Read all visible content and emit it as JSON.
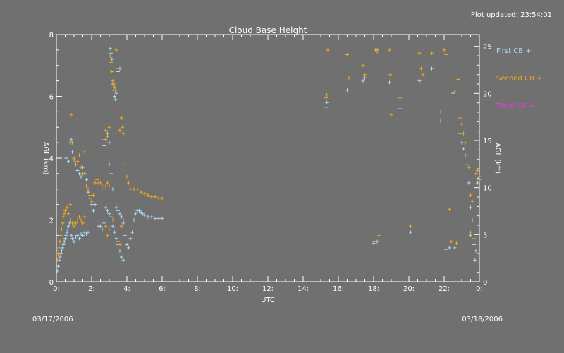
{
  "chart_data": {
    "type": "scatter",
    "title": "Cloud Base Height",
    "updated": "Plot updated: 23:54:01",
    "xlabel": "UTC",
    "ylabel_left": "AGL (km)",
    "ylabel_right": "AGL (kft)",
    "date_left": "03/17/2006",
    "date_right": "03/18/2006",
    "xlim": [
      0,
      24
    ],
    "ylim": [
      0,
      8
    ],
    "ylim_right": [
      0,
      26.25
    ],
    "x_ticks": [
      "0:",
      "2:",
      "4:",
      "6:",
      "8:",
      "10:",
      "12:",
      "14:",
      "16:",
      "18:",
      "20:",
      "22:",
      "0:"
    ],
    "y_ticks_left": [
      "0",
      "2",
      "4",
      "6",
      "8"
    ],
    "y_ticks_right": [
      "0",
      "5",
      "10",
      "15",
      "20",
      "25"
    ],
    "grid": false,
    "legend_placement": "right",
    "colors": {
      "first": "#a8d8f0",
      "second": "#f0a818",
      "third": "#e040e0",
      "axis": "#ffffff",
      "background": "#707070"
    },
    "series": [
      {
        "name": "First CB",
        "marker": "+",
        "points": [
          [
            0.05,
            0.35
          ],
          [
            0.1,
            0.5
          ],
          [
            0.15,
            0.7
          ],
          [
            0.2,
            0.8
          ],
          [
            0.25,
            0.9
          ],
          [
            0.3,
            1.0
          ],
          [
            0.35,
            1.1
          ],
          [
            0.4,
            1.2
          ],
          [
            0.45,
            1.3
          ],
          [
            0.5,
            1.4
          ],
          [
            0.55,
            1.5
          ],
          [
            0.6,
            1.6
          ],
          [
            0.65,
            1.7
          ],
          [
            0.7,
            1.8
          ],
          [
            0.75,
            1.9
          ],
          [
            0.8,
            2.0
          ],
          [
            0.85,
            1.5
          ],
          [
            0.9,
            1.4
          ],
          [
            1.0,
            1.3
          ],
          [
            1.1,
            1.45
          ],
          [
            1.2,
            1.5
          ],
          [
            1.3,
            1.4
          ],
          [
            1.4,
            1.55
          ],
          [
            1.5,
            1.5
          ],
          [
            1.6,
            1.6
          ],
          [
            1.7,
            1.55
          ],
          [
            1.8,
            1.6
          ],
          [
            0.55,
            4.0
          ],
          [
            0.7,
            3.9
          ],
          [
            0.8,
            4.5
          ],
          [
            0.85,
            4.6
          ],
          [
            0.9,
            4.2
          ],
          [
            1.0,
            3.95
          ],
          [
            1.1,
            3.8
          ],
          [
            1.2,
            3.6
          ],
          [
            1.3,
            3.5
          ],
          [
            1.4,
            3.4
          ],
          [
            1.5,
            3.7
          ],
          [
            1.6,
            3.5
          ],
          [
            1.7,
            3.3
          ],
          [
            1.8,
            2.9
          ],
          [
            1.9,
            2.7
          ],
          [
            2.0,
            2.5
          ],
          [
            2.1,
            2.3
          ],
          [
            2.2,
            2.5
          ],
          [
            2.3,
            2.0
          ],
          [
            2.4,
            1.8
          ],
          [
            2.5,
            1.8
          ],
          [
            2.6,
            1.7
          ],
          [
            2.7,
            1.9
          ],
          [
            2.8,
            2.4
          ],
          [
            2.9,
            2.3
          ],
          [
            3.0,
            2.2
          ],
          [
            3.1,
            2.1
          ],
          [
            3.2,
            1.8
          ],
          [
            3.3,
            1.6
          ],
          [
            3.4,
            1.4
          ],
          [
            3.5,
            1.2
          ],
          [
            3.6,
            1.0
          ],
          [
            3.7,
            0.8
          ],
          [
            3.8,
            0.7
          ],
          [
            2.7,
            4.4
          ],
          [
            2.8,
            4.6
          ],
          [
            2.9,
            4.8
          ],
          [
            3.0,
            4.5
          ],
          [
            3.05,
            7.55
          ],
          [
            3.1,
            7.4
          ],
          [
            3.15,
            7.2
          ],
          [
            3.2,
            6.4
          ],
          [
            3.25,
            6.2
          ],
          [
            3.3,
            6.0
          ],
          [
            3.35,
            5.9
          ],
          [
            3.4,
            6.1
          ],
          [
            3.5,
            6.8
          ],
          [
            3.6,
            6.9
          ],
          [
            3.0,
            3.8
          ],
          [
            3.1,
            3.5
          ],
          [
            3.2,
            3.0
          ],
          [
            3.4,
            2.4
          ],
          [
            3.5,
            2.3
          ],
          [
            3.6,
            2.2
          ],
          [
            3.7,
            2.1
          ],
          [
            3.8,
            1.9
          ],
          [
            3.9,
            1.5
          ],
          [
            4.0,
            1.2
          ],
          [
            4.1,
            1.1
          ],
          [
            4.2,
            1.4
          ],
          [
            4.3,
            1.6
          ],
          [
            4.4,
            2.0
          ],
          [
            4.5,
            2.2
          ],
          [
            4.6,
            2.3
          ],
          [
            4.7,
            2.3
          ],
          [
            4.8,
            2.25
          ],
          [
            4.9,
            2.2
          ],
          [
            5.0,
            2.15
          ],
          [
            5.2,
            2.1
          ],
          [
            5.4,
            2.1
          ],
          [
            5.6,
            2.05
          ],
          [
            5.8,
            2.05
          ],
          [
            6.0,
            2.05
          ],
          [
            15.3,
            5.65
          ],
          [
            15.35,
            5.8
          ],
          [
            16.5,
            6.2
          ],
          [
            17.4,
            6.5
          ],
          [
            17.5,
            6.6
          ],
          [
            18.2,
            7.5
          ],
          [
            18.9,
            6.45
          ],
          [
            19.5,
            5.6
          ],
          [
            20.1,
            1.6
          ],
          [
            20.6,
            6.5
          ],
          [
            21.3,
            6.9
          ],
          [
            21.8,
            5.2
          ],
          [
            22.1,
            1.05
          ],
          [
            22.3,
            1.1
          ],
          [
            22.5,
            6.1
          ],
          [
            22.9,
            4.8
          ],
          [
            23.0,
            4.5
          ],
          [
            23.1,
            4.3
          ],
          [
            23.2,
            4.1
          ],
          [
            23.3,
            3.8
          ],
          [
            23.4,
            3.2
          ],
          [
            23.5,
            2.4
          ],
          [
            23.6,
            2.0
          ],
          [
            23.7,
            1.2
          ],
          [
            23.75,
            0.7
          ],
          [
            23.8,
            1.0
          ],
          [
            23.9,
            3.2
          ],
          [
            24.0,
            3.4
          ],
          [
            22.6,
            1.1
          ],
          [
            23.5,
            1.5
          ],
          [
            18.0,
            1.25
          ],
          [
            18.2,
            1.3
          ]
        ]
      },
      {
        "name": "Second CB",
        "marker": "+",
        "points": [
          [
            0.05,
            0.7
          ],
          [
            0.1,
            0.9
          ],
          [
            0.15,
            1.1
          ],
          [
            0.2,
            1.3
          ],
          [
            0.25,
            1.5
          ],
          [
            0.3,
            1.7
          ],
          [
            0.35,
            1.9
          ],
          [
            0.4,
            2.1
          ],
          [
            0.45,
            2.2
          ],
          [
            0.5,
            2.3
          ],
          [
            0.6,
            2.4
          ],
          [
            0.7,
            2.2
          ],
          [
            0.8,
            2.5
          ],
          [
            0.9,
            1.9
          ],
          [
            1.0,
            1.8
          ],
          [
            1.1,
            1.9
          ],
          [
            1.2,
            2.0
          ],
          [
            1.3,
            2.1
          ],
          [
            1.4,
            2.0
          ],
          [
            1.5,
            1.9
          ],
          [
            1.6,
            2.1
          ],
          [
            0.85,
            5.4
          ],
          [
            0.9,
            4.5
          ],
          [
            1.0,
            4.0
          ],
          [
            1.1,
            3.8
          ],
          [
            1.2,
            3.9
          ],
          [
            1.3,
            4.1
          ],
          [
            1.4,
            3.7
          ],
          [
            1.5,
            3.5
          ],
          [
            1.6,
            4.2
          ],
          [
            1.7,
            3.1
          ],
          [
            1.8,
            3.0
          ],
          [
            1.9,
            2.8
          ],
          [
            2.0,
            2.6
          ],
          [
            2.1,
            2.8
          ],
          [
            2.2,
            3.2
          ],
          [
            2.3,
            3.3
          ],
          [
            2.4,
            3.2
          ],
          [
            2.5,
            3.2
          ],
          [
            2.6,
            3.1
          ],
          [
            2.7,
            3.0
          ],
          [
            2.8,
            3.1
          ],
          [
            2.9,
            3.2
          ],
          [
            3.0,
            3.1
          ],
          [
            2.7,
            4.6
          ],
          [
            2.8,
            4.9
          ],
          [
            2.9,
            4.7
          ],
          [
            3.0,
            5.0
          ],
          [
            3.05,
            7.3
          ],
          [
            3.1,
            7.1
          ],
          [
            3.15,
            6.8
          ],
          [
            3.2,
            6.5
          ],
          [
            3.25,
            6.4
          ],
          [
            3.3,
            6.3
          ],
          [
            3.35,
            6.2
          ],
          [
            3.4,
            7.5
          ],
          [
            3.5,
            6.9
          ],
          [
            3.6,
            4.9
          ],
          [
            3.7,
            5.3
          ],
          [
            3.75,
            5.0
          ],
          [
            3.8,
            4.8
          ],
          [
            3.9,
            3.8
          ],
          [
            4.0,
            3.4
          ],
          [
            4.1,
            3.2
          ],
          [
            4.2,
            3.0
          ],
          [
            4.4,
            3.0
          ],
          [
            4.6,
            3.0
          ],
          [
            4.8,
            2.9
          ],
          [
            5.0,
            2.85
          ],
          [
            5.2,
            2.8
          ],
          [
            5.4,
            2.75
          ],
          [
            5.6,
            2.75
          ],
          [
            5.8,
            2.7
          ],
          [
            6.0,
            2.7
          ],
          [
            2.8,
            1.8
          ],
          [
            2.9,
            1.5
          ],
          [
            3.0,
            1.7
          ],
          [
            3.2,
            2.0
          ],
          [
            3.5,
            1.3
          ],
          [
            3.6,
            1.2
          ],
          [
            3.7,
            1.8
          ],
          [
            3.8,
            2.0
          ],
          [
            15.3,
            5.95
          ],
          [
            15.35,
            6.05
          ],
          [
            15.4,
            7.5
          ],
          [
            16.5,
            7.35
          ],
          [
            16.6,
            6.6
          ],
          [
            17.4,
            7.0
          ],
          [
            17.5,
            6.7
          ],
          [
            18.1,
            7.5
          ],
          [
            18.2,
            7.45
          ],
          [
            18.9,
            7.5
          ],
          [
            18.95,
            6.7
          ],
          [
            19.0,
            5.4
          ],
          [
            19.5,
            5.95
          ],
          [
            20.1,
            1.8
          ],
          [
            20.6,
            7.4
          ],
          [
            20.7,
            6.9
          ],
          [
            20.8,
            6.7
          ],
          [
            21.3,
            7.4
          ],
          [
            21.8,
            5.5
          ],
          [
            22.0,
            7.5
          ],
          [
            22.1,
            7.35
          ],
          [
            22.3,
            2.35
          ],
          [
            22.4,
            1.3
          ],
          [
            22.6,
            6.15
          ],
          [
            22.8,
            6.55
          ],
          [
            22.9,
            5.3
          ],
          [
            23.0,
            5.1
          ],
          [
            23.1,
            4.8
          ],
          [
            23.2,
            4.5
          ],
          [
            23.3,
            4.1
          ],
          [
            23.4,
            3.7
          ],
          [
            23.5,
            2.8
          ],
          [
            23.6,
            2.6
          ],
          [
            23.7,
            1.4
          ],
          [
            23.8,
            3.5
          ],
          [
            23.9,
            3.6
          ],
          [
            24.0,
            3.3
          ],
          [
            22.7,
            1.25
          ],
          [
            23.5,
            1.6
          ],
          [
            18.0,
            1.3
          ],
          [
            18.3,
            1.5
          ]
        ]
      },
      {
        "name": "Third CB",
        "marker": "+",
        "points": []
      }
    ]
  }
}
